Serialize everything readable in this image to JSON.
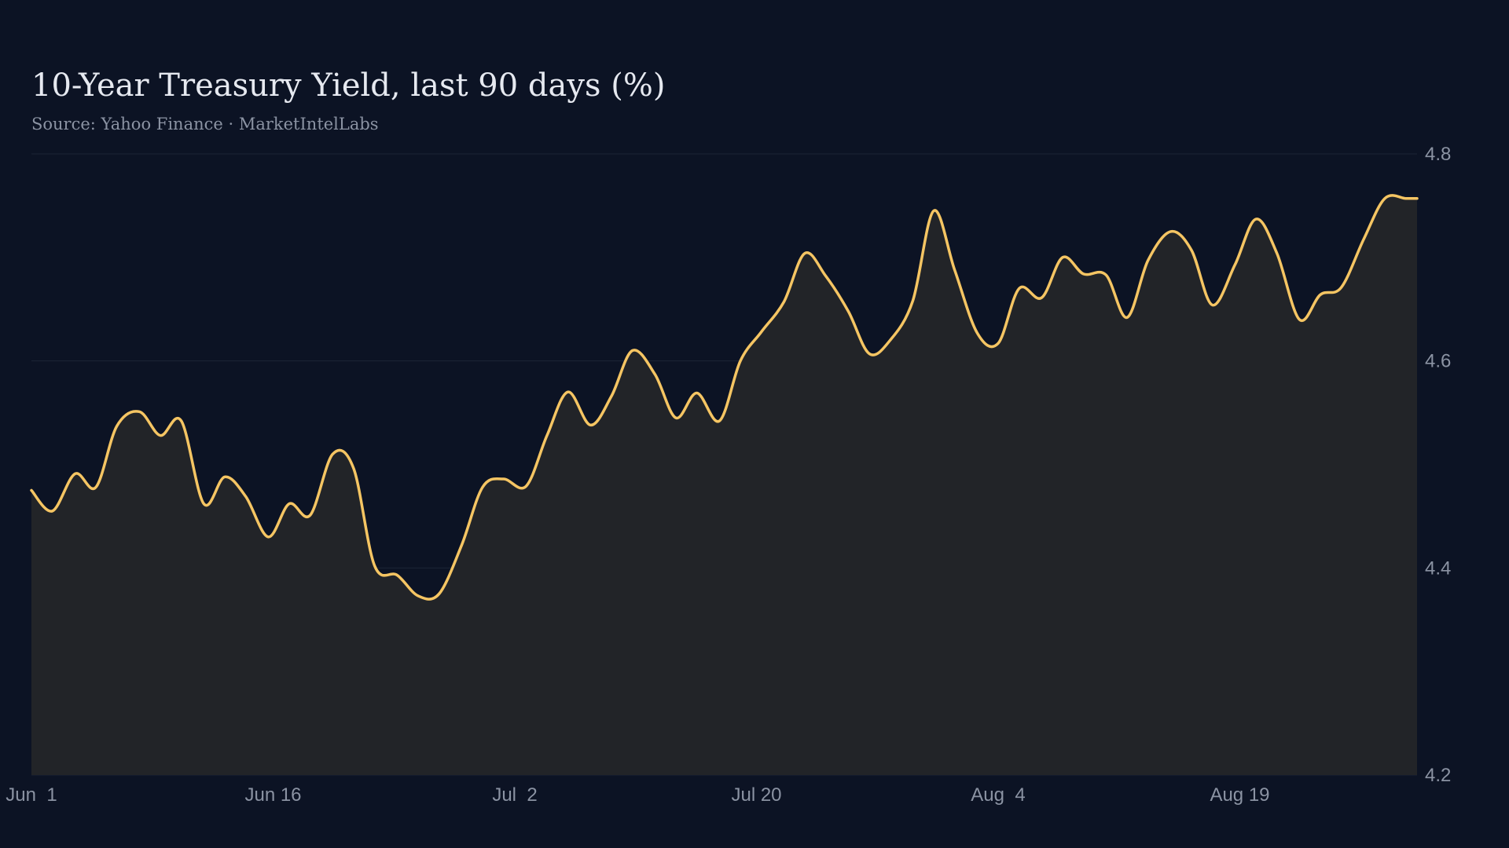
{
  "chart_data": {
    "type": "area",
    "title": "10-Year Treasury Yield, last 90 days (%)",
    "subtitle": "Source: Yahoo Finance · MarketIntelLabs",
    "xlabel": "",
    "ylabel": "",
    "ylim": [
      4.2,
      4.8
    ],
    "y_ticks": [
      4.2,
      4.4,
      4.6,
      4.8
    ],
    "y_axis_side": "right",
    "x_ticks": [
      {
        "label": "Jun  1",
        "x": 0
      },
      {
        "label": "Jun 16",
        "x": 15
      },
      {
        "label": "Jul  2",
        "x": 30
      },
      {
        "label": "Jul 20",
        "x": 45
      },
      {
        "label": "Aug  4",
        "x": 60
      },
      {
        "label": "Aug 19",
        "x": 75
      }
    ],
    "grid": true,
    "legend": "none",
    "colors": {
      "background": "#0c1324",
      "line": "#f5c563",
      "area_fill": "#222428",
      "grid": "#1d2636",
      "text_primary": "#e6e9f0",
      "text_secondary": "#8b93a3"
    },
    "series": [
      {
        "x": [
          0,
          1.3,
          2.7,
          4,
          5.3,
          6.7,
          8,
          9.3,
          10.7,
          12,
          13.3,
          14.7,
          16,
          17.3,
          18.7,
          20,
          21.3,
          22.7,
          24,
          25.3,
          26.7,
          28,
          29.3,
          30.7,
          32,
          33.3,
          34.7,
          36,
          37.3,
          38.7,
          40,
          41.3,
          42.7,
          44,
          45.3,
          46.7,
          48,
          49.3,
          50.7,
          52,
          53.3,
          54.7,
          56,
          57.3,
          58.7,
          60,
          61.3,
          62.7,
          64,
          65.3,
          66.7,
          68,
          69.3,
          70.7,
          72,
          73.3,
          74.7,
          76,
          77.3,
          78.7,
          80,
          81.3,
          82.7,
          84,
          85.3,
          86
        ],
        "values": [
          4.475,
          4.455,
          4.491,
          4.478,
          4.537,
          4.551,
          4.528,
          4.542,
          4.462,
          4.488,
          4.469,
          4.43,
          4.462,
          4.451,
          4.51,
          4.496,
          4.402,
          4.393,
          4.373,
          4.375,
          4.422,
          4.478,
          4.486,
          4.479,
          4.528,
          4.57,
          4.538,
          4.566,
          4.61,
          4.587,
          4.545,
          4.569,
          4.542,
          4.6,
          4.628,
          4.657,
          4.704,
          4.682,
          4.648,
          4.607,
          4.62,
          4.658,
          4.745,
          4.688,
          4.627,
          4.617,
          4.67,
          4.661,
          4.7,
          4.684,
          4.683,
          4.642,
          4.697,
          4.725,
          4.707,
          4.654,
          4.693,
          4.737,
          4.704,
          4.64,
          4.664,
          4.671,
          4.718,
          4.757,
          4.757,
          4.757
        ]
      }
    ]
  }
}
